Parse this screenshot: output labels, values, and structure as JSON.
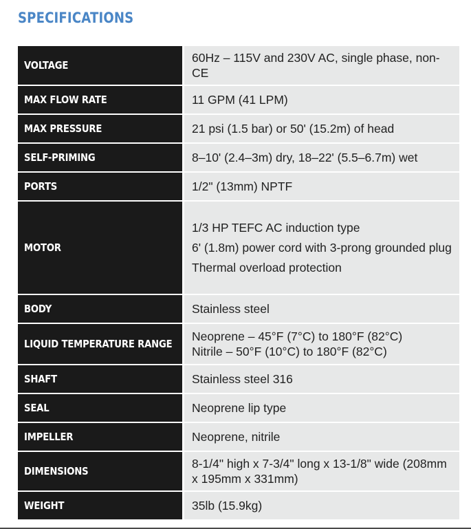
{
  "title": "SPECIFICATIONS",
  "rows": [
    {
      "label": "VOLTAGE",
      "lines": [
        "60Hz – 115V and 230V AC, single phase, non-CE"
      ]
    },
    {
      "label": "MAX FLOW RATE",
      "lines": [
        "11 GPM (41 LPM)"
      ]
    },
    {
      "label": "MAX PRESSURE",
      "lines": [
        "21 psi (1.5 bar) or 50' (15.2m) of head"
      ]
    },
    {
      "label": "SELF-PRIMING",
      "lines": [
        "8–10' (2.4–3m) dry, 18–22' (5.5–6.7m) wet"
      ]
    },
    {
      "label": "PORTS",
      "lines": [
        "1/2\" (13mm) NPTF"
      ]
    },
    {
      "label": "MOTOR",
      "lines": [
        "1/3 HP TEFC AC induction type",
        "6' (1.8m) power cord with 3-prong grounded plug",
        "Thermal overload protection"
      ]
    },
    {
      "label": "BODY",
      "lines": [
        "Stainless steel"
      ]
    },
    {
      "label": "LIQUID TEMPERATURE RANGE",
      "lines": [
        "Neoprene – 45°F (7°C) to 180°F (82°C)",
        "Nitrile – 50°F (10°C) to 180°F (82°C)"
      ]
    },
    {
      "label": "SHAFT",
      "lines": [
        "Stainless steel 316"
      ]
    },
    {
      "label": "SEAL",
      "lines": [
        "Neoprene lip type"
      ]
    },
    {
      "label": "IMPELLER",
      "lines": [
        "Neoprene, nitrile"
      ]
    },
    {
      "label": "DIMENSIONS",
      "lines": [
        "8-1/4\" high x 7-3/4\" long x 13-1/8\" wide (208mm x 195mm x 331mm)"
      ]
    },
    {
      "label": "WEIGHT",
      "lines": [
        "35lb (15.9kg)"
      ]
    }
  ]
}
